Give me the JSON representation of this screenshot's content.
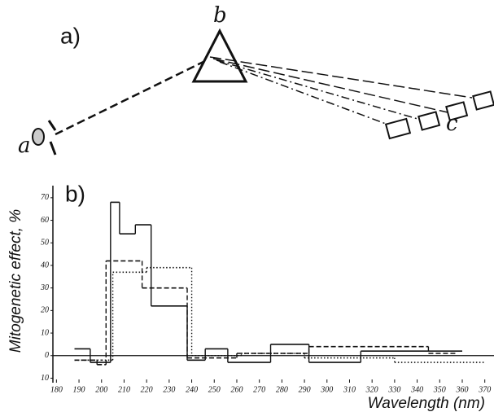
{
  "diagram": {
    "panel_label": "a)",
    "source_label": "a",
    "prism_label": "b",
    "detector_label": "c"
  },
  "chart_data": {
    "type": "step",
    "panel_label": "b)",
    "x_label": "Wavelength (nm)",
    "y_label": "Mitogenetic effect, %",
    "xlim": [
      175,
      373
    ],
    "ylim": [
      -12,
      75
    ],
    "xticks": [
      180,
      190,
      200,
      210,
      220,
      230,
      240,
      250,
      260,
      270,
      280,
      290,
      300,
      310,
      320,
      330,
      340,
      350,
      360,
      370
    ],
    "yticks": [
      {
        "value": -10,
        "label": "10"
      },
      0,
      10,
      20,
      30,
      40,
      50,
      60,
      70
    ],
    "zero_line": true,
    "series": [
      {
        "color": "#111111",
        "style": "solid",
        "bins": [
          188,
          195,
          204,
          208,
          215,
          222,
          238,
          246,
          256,
          275,
          292,
          315,
          360
        ],
        "values": [
          3,
          -3,
          68,
          54,
          58,
          22,
          -2,
          3,
          -3,
          5,
          -3,
          2
        ]
      },
      {
        "color": "#111111",
        "style": "dashed",
        "bins": [
          188,
          198,
          202,
          218,
          238,
          260,
          292,
          345,
          358
        ],
        "values": [
          -2,
          -4,
          42,
          30,
          -1,
          1,
          4,
          1
        ]
      },
      {
        "color": "#111111",
        "style": "dotted",
        "bins": [
          188,
          200,
          205,
          220,
          240,
          262,
          290,
          330,
          370
        ],
        "values": [
          -2,
          -2,
          37,
          39,
          0,
          1,
          -1,
          -3
        ]
      }
    ]
  }
}
